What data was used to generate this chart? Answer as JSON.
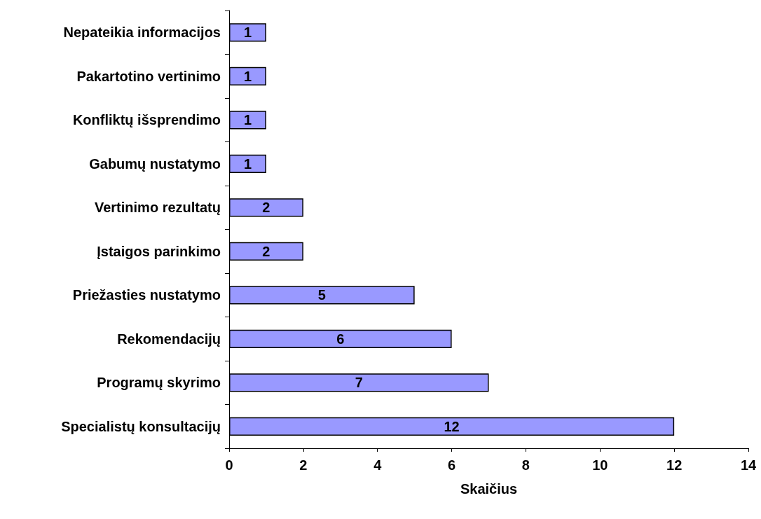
{
  "chart_data": {
    "type": "bar",
    "orientation": "horizontal",
    "xlabel": "Skaičius",
    "categories": [
      "Nepateikia informacijos",
      "Pakartotino vertinimo",
      "Konfliktų išsprendimo",
      "Gabumų nustatymo",
      "Vertinimo rezultatų",
      "Įstaigos parinkimo",
      "Priežasties nustatymo",
      "Rekomendacijų",
      "Programų skyrimo",
      "Specialistų konsultacijų"
    ],
    "values": [
      1,
      1,
      1,
      1,
      2,
      2,
      5,
      6,
      7,
      12
    ],
    "color": "#9999ff",
    "xlim": [
      0,
      14
    ],
    "xticks": [
      0,
      2,
      4,
      6,
      8,
      10,
      12,
      14
    ],
    "grid": false,
    "data_labels": true
  }
}
